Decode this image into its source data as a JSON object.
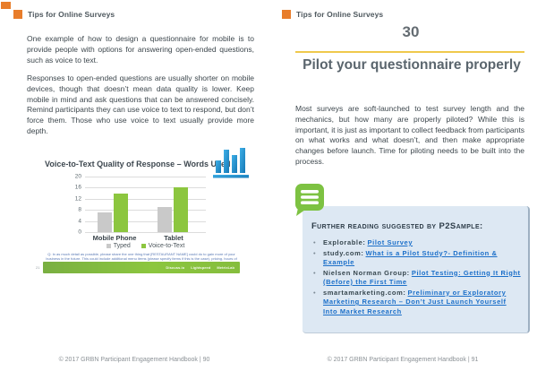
{
  "header": {
    "label": "Tips for Online Surveys"
  },
  "left_page": {
    "paragraph1": "One example of how to design a questionnaire for mobile is to provide people with options for answering open-ended questions, such as voice to text.",
    "paragraph2": "Responses to open-ended questions are usually shorter on mobile devices, though that doesn’t mean data quality is lower. Keep mobile in mind and ask questions that can be answered concisely. Remind participants they can use voice to text to respond, but don’t force them. Those who use voice to text usually provide more depth.",
    "chart_footnote": "Q: In as much detail as possible, please share the one thing that [RESTAURANT NAME] could do to gain more of your business in the future. This could include additional menu items (please specify items if this is the case), pricing, hours of operation, service, interior design, amenities, etc.",
    "slide_number": "21",
    "slide_logos": [
      "Discuss.io",
      "Lightspeed",
      "MetrixLab"
    ],
    "footer": "© 2017 GRBN Participant Engagement Handbook | 90"
  },
  "right_page": {
    "tip_number": "30",
    "title": "Pilot your questionnaire properly",
    "paragraph": "Most surveys are soft-launched to test survey length and the mechanics, but how many are properly piloted? While this is important, it is just as important to collect feedback from participants on what works and what doesn’t, and then make appropriate changes before launch. Time for piloting needs to be built into the process.",
    "reading_box": {
      "heading": "Further reading suggested by P2Sample:",
      "items": [
        {
          "prefix": "Explorable:",
          "link": "Pilot Survey"
        },
        {
          "prefix": "study.com:",
          "link": "What is a Pilot Study?- Definition & Example"
        },
        {
          "prefix": "Nielsen Norman Group:",
          "link": "Pilot Testing: Getting It Right (Before) the First Time"
        },
        {
          "prefix": "smartamarketing.com:",
          "link": "Preliminary or Exploratory Marketing Research – Don’t Just Launch Yourself Into Market Research"
        }
      ]
    },
    "footer": "© 2017 GRBN Participant Engagement Handbook | 91"
  },
  "chart_data": {
    "type": "bar",
    "title": "Voice-to-Text Quality of Response – Words Used",
    "categories": [
      "Mobile Phone",
      "Tablet"
    ],
    "series": [
      {
        "name": "Typed",
        "color": "#c9c9c9",
        "values": [
          7,
          9
        ]
      },
      {
        "name": "Voice-to-Text",
        "color": "#8cc63f",
        "values": [
          14,
          16
        ]
      }
    ],
    "xlabel": "",
    "ylabel": "",
    "ylim": [
      0,
      20
    ],
    "yticks": [
      0,
      4,
      8,
      12,
      16,
      20
    ],
    "grid": true,
    "legend_position": "bottom"
  },
  "colors": {
    "accent_orange": "#e87d2b",
    "accent_gold": "#efc94c",
    "accent_green": "#7dc242",
    "link_blue": "#1b6fc9",
    "box_blue": "#dde8f3",
    "chart_icon_blue": "#2b9cd8",
    "bar_gray": "#c9c9c9",
    "bar_green": "#8cc63f"
  }
}
